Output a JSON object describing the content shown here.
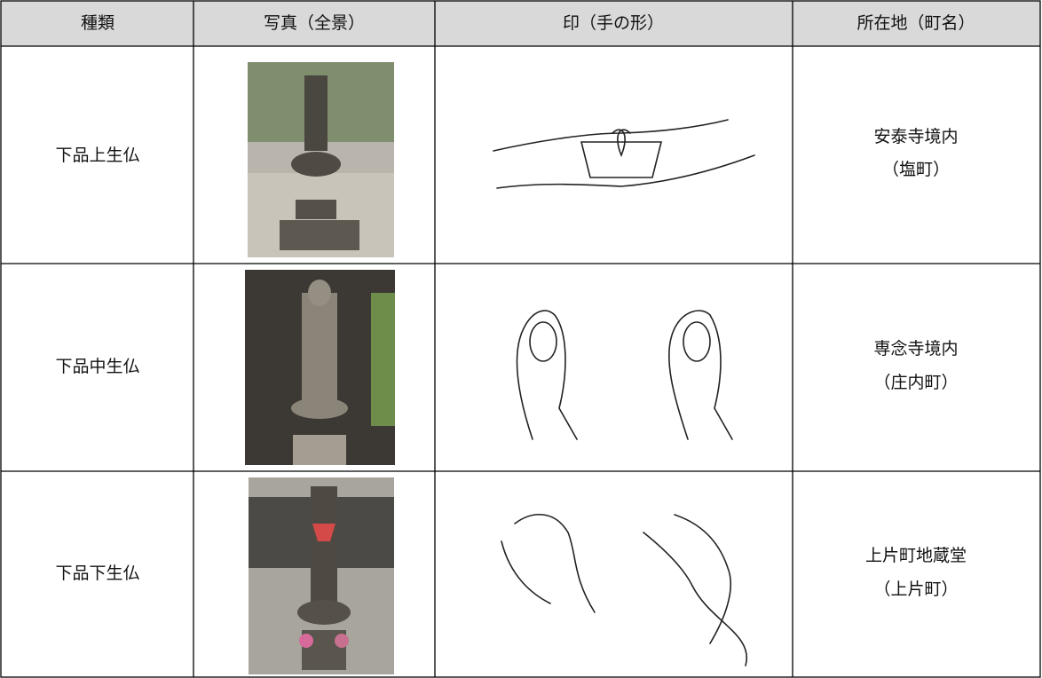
{
  "table": {
    "header": [
      "種類",
      "写真（全景）",
      "印（手の形）",
      "所在地（町名）"
    ],
    "rows": [
      {
        "type": "下品上生仏",
        "location": "安泰寺境内",
        "district": "（塩町）"
      },
      {
        "type": "下品中生仏",
        "location": "専念寺境内",
        "district": "（庄内町）"
      },
      {
        "type": "下品下生仏",
        "location": "上片町地蔵堂",
        "district": "（上片町）"
      }
    ]
  }
}
